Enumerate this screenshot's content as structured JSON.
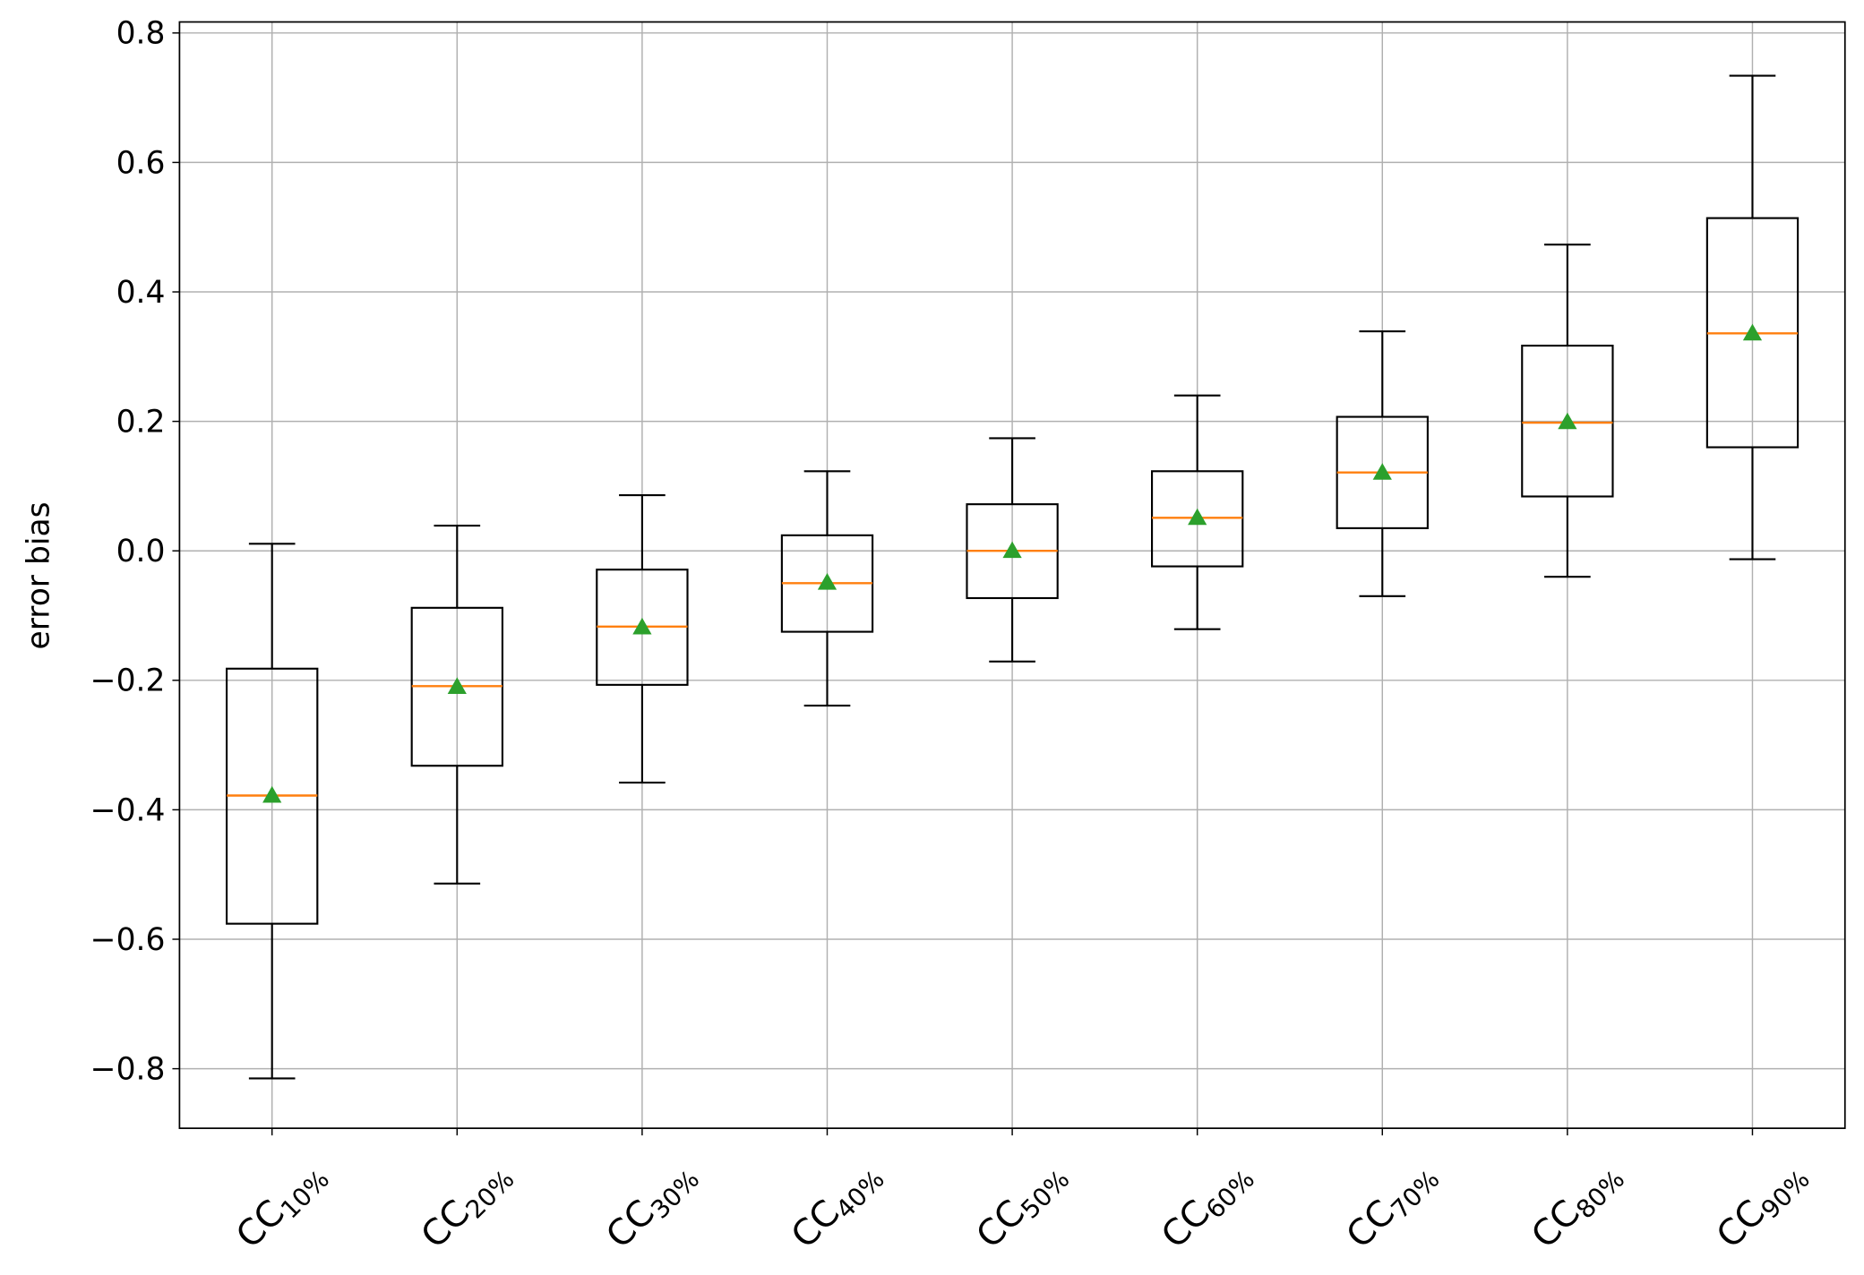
{
  "chart_data": {
    "type": "box",
    "title": "",
    "xlabel": "",
    "ylabel": "error bias",
    "ylim": [
      -0.892,
      0.817
    ],
    "yticks": [
      "0.8",
      "0.6",
      "0.4",
      "0.2",
      "0.0",
      "−0.2",
      "−0.4",
      "−0.6",
      "−0.8"
    ],
    "ytick_values": [
      0.8,
      0.6,
      0.4,
      0.2,
      0.0,
      -0.2,
      -0.4,
      -0.6,
      -0.8
    ],
    "grid": true,
    "categories": [
      {
        "base": "CC",
        "sub": "10%"
      },
      {
        "base": "CC",
        "sub": "20%"
      },
      {
        "base": "CC",
        "sub": "30%"
      },
      {
        "base": "CC",
        "sub": "40%"
      },
      {
        "base": "CC",
        "sub": "50%"
      },
      {
        "base": "CC",
        "sub": "60%"
      },
      {
        "base": "CC",
        "sub": "70%"
      },
      {
        "base": "CC",
        "sub": "80%"
      },
      {
        "base": "CC",
        "sub": "90%"
      }
    ],
    "boxes": [
      {
        "whisker_low": -0.815,
        "q1": -0.576,
        "median": -0.378,
        "mean": -0.378,
        "q3": -0.182,
        "whisker_high": 0.011
      },
      {
        "whisker_low": -0.514,
        "q1": -0.332,
        "median": -0.209,
        "mean": -0.21,
        "q3": -0.088,
        "whisker_high": 0.039
      },
      {
        "whisker_low": -0.358,
        "q1": -0.207,
        "median": -0.117,
        "mean": -0.118,
        "q3": -0.029,
        "whisker_high": 0.086
      },
      {
        "whisker_low": -0.239,
        "q1": -0.125,
        "median": -0.05,
        "mean": -0.049,
        "q3": 0.024,
        "whisker_high": 0.123
      },
      {
        "whisker_low": -0.171,
        "q1": -0.073,
        "median": 0.0,
        "mean": 0.0,
        "q3": 0.072,
        "whisker_high": 0.174
      },
      {
        "whisker_low": -0.121,
        "q1": -0.024,
        "median": 0.051,
        "mean": 0.051,
        "q3": 0.123,
        "whisker_high": 0.24
      },
      {
        "whisker_low": -0.07,
        "q1": 0.035,
        "median": 0.121,
        "mean": 0.121,
        "q3": 0.207,
        "whisker_high": 0.339
      },
      {
        "whisker_low": -0.04,
        "q1": 0.084,
        "median": 0.198,
        "mean": 0.199,
        "q3": 0.317,
        "whisker_high": 0.473
      },
      {
        "whisker_low": -0.013,
        "q1": 0.16,
        "median": 0.336,
        "mean": 0.336,
        "q3": 0.514,
        "whisker_high": 0.734
      }
    ],
    "colors": {
      "box": "#000000",
      "median": "#ff7f0e",
      "mean": "#2ca02c",
      "grid": "#b0b0b0"
    }
  }
}
